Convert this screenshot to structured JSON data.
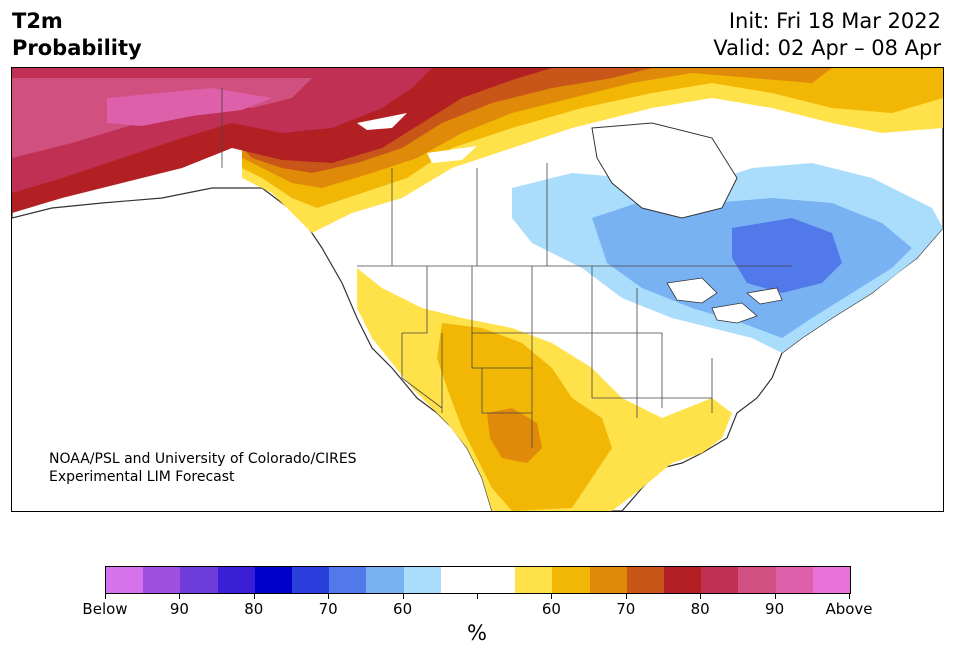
{
  "header": {
    "title_line1": "T2m",
    "title_line2": "Probability",
    "init": "Init: Fri 18 Mar 2022",
    "valid": "Valid: 02 Apr – 08 Apr"
  },
  "credit": {
    "line1": "NOAA/PSL and University of Colorado/CIRES",
    "line2": "Experimental LIM Forecast"
  },
  "colorbar": {
    "colors": [
      "#d672ec",
      "#a050e0",
      "#6e3cda",
      "#3b1fd6",
      "#0000cc",
      "#2a3edc",
      "#5279ea",
      "#79b2f3",
      "#aadcfb",
      "#ffffff",
      "#ffffff",
      "#ffe14a",
      "#f2b705",
      "#e08a0a",
      "#c85618",
      "#b22024",
      "#c03055",
      "#d05080",
      "#de5faa",
      "#e872d8"
    ],
    "tick_labels": [
      "Below",
      "90",
      "80",
      "70",
      "60",
      "",
      "60",
      "70",
      "80",
      "90",
      "Above"
    ],
    "unit": "%"
  },
  "map": {
    "region": "North America",
    "colors": {
      "above_90": "#de5faa",
      "above_85": "#d05080",
      "above_80": "#c03055",
      "above_75": "#b22024",
      "above_70": "#c85618",
      "above_65": "#e08a0a",
      "above_60": "#f2b705",
      "above_55": "#ffe14a",
      "below_55": "#aadcfb",
      "below_60": "#79b2f3",
      "below_65": "#5279ea",
      "land_neutral": "#ffffff",
      "lake": "#ffffff",
      "boundary": "#333333"
    }
  }
}
